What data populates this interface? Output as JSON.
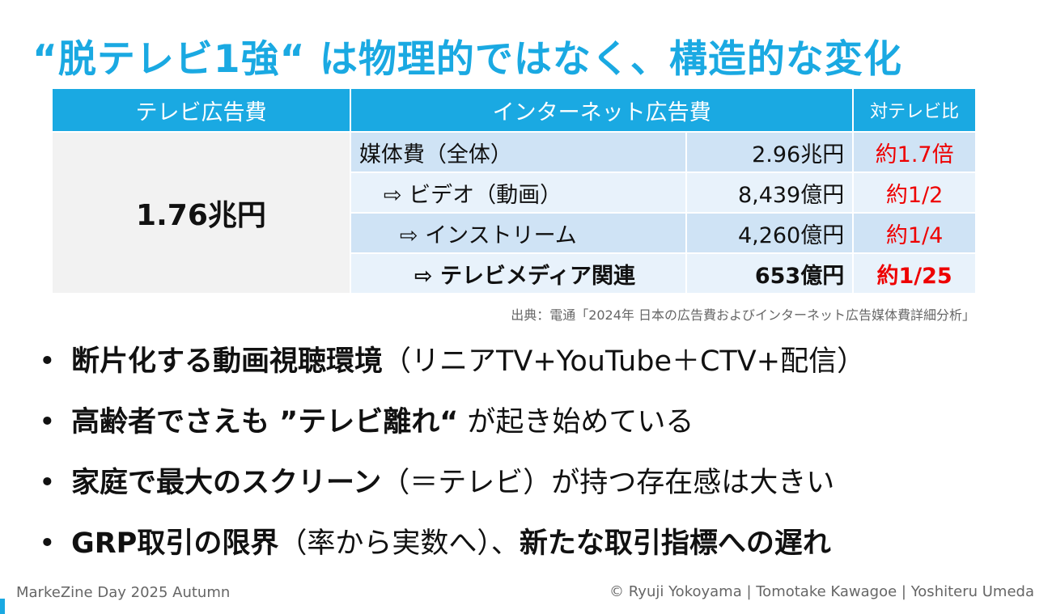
{
  "title": "“脱テレビ1強“ は物理的ではなく、構造的な変化",
  "table": {
    "headers": [
      "テレビ広告費",
      "インターネット広告費",
      "対テレビ比"
    ],
    "tv_value": "1.76兆円",
    "rows": [
      {
        "label": "媒体費（全体）",
        "amount": "2.96兆円",
        "ratio": "約1.7倍"
      },
      {
        "label": "⇨ ビデオ（動画）",
        "amount": "8,439億円",
        "ratio": "約1/2"
      },
      {
        "label": "⇨ インストリーム",
        "amount": "4,260億円",
        "ratio": "約1/4"
      },
      {
        "label": "⇨ テレビメディア関連",
        "amount": "653億円",
        "ratio": "約1/25"
      }
    ],
    "accent_color": "#1aa9e2",
    "ratio_color": "#ee0000"
  },
  "source": "出典：電通「2024年 日本の広告費およびインターネット広告媒体費詳細分析」",
  "bullets": [
    {
      "bold": "断片化する動画視聴環境",
      "normal": "（リニアTV+YouTube＋CTV+配信）",
      "bold2": ""
    },
    {
      "bold": "高齢者でさえも ”テレビ離れ“",
      "normal": " が起き始めている",
      "bold2": ""
    },
    {
      "bold": "家庭で最大のスクリーン",
      "normal": "（＝テレビ）が持つ存在感は大きい",
      "bold2": ""
    },
    {
      "bold": "GRP取引の限界",
      "normal": "（率から実数へ）、",
      "bold2": "新たな取引指標への遅れ"
    }
  ],
  "bullet_symbol": "•",
  "footer": {
    "event": "MarkeZine Day 2025 Autumn",
    "credits": "© Ryuji Yokoyama | Tomotake Kawagoe | Yoshiteru Umeda"
  }
}
